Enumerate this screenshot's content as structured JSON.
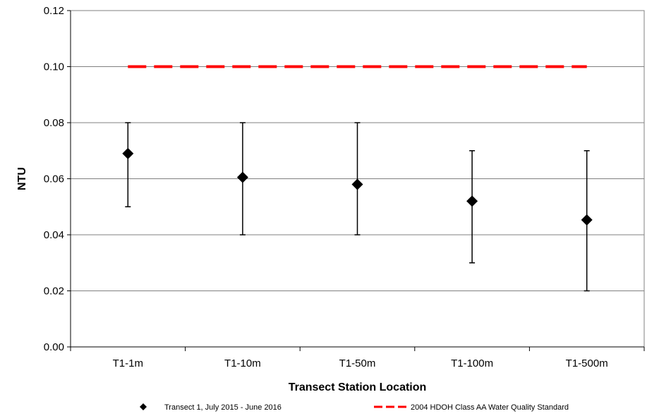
{
  "chart_data": {
    "type": "scatter",
    "xlabel": "Transect Station Location",
    "ylabel": "NTU",
    "ylim": [
      0,
      0.12
    ],
    "yticks": [
      "0.00",
      "0.02",
      "0.04",
      "0.06",
      "0.08",
      "0.10",
      "0.12"
    ],
    "categories": [
      "T1-1m",
      "T1-10m",
      "T1-50m",
      "T1-100m",
      "T1-500m"
    ],
    "grid": true,
    "legend_position": "bottom",
    "series": [
      {
        "name": "Transect 1,  July 2015 - June 2016",
        "marker": "diamond",
        "color": "#000000",
        "values": [
          0.069,
          0.0605,
          0.058,
          0.052,
          0.0453
        ],
        "error_min": [
          0.05,
          0.04,
          0.04,
          0.03,
          0.02
        ],
        "error_max": [
          0.08,
          0.08,
          0.08,
          0.07,
          0.07
        ]
      },
      {
        "name": "2004 HDOH Class AA Water Quality Standard",
        "style": "dashed",
        "color": "#ff0000",
        "values": [
          0.1,
          0.1,
          0.1,
          0.1,
          0.1
        ]
      }
    ]
  }
}
